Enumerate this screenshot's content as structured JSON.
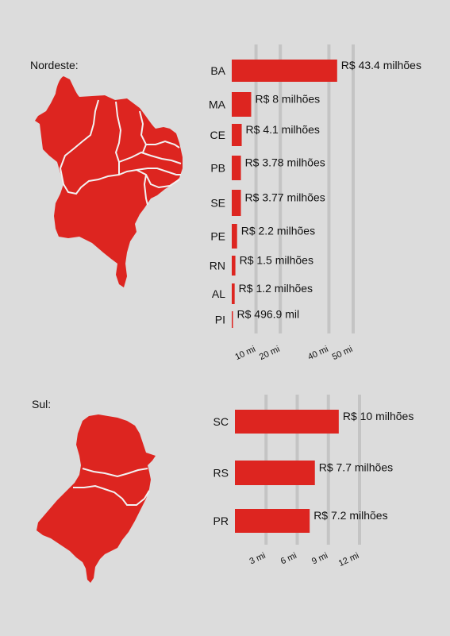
{
  "colors": {
    "background": "#dcdcdc",
    "bar": "#dd2520",
    "grid": "#c4c4c4",
    "map": "#dd2520",
    "map_border": "#f2f2f2"
  },
  "regions": [
    {
      "label": "Nordeste:",
      "map_icon": "nordeste-map-icon"
    },
    {
      "label": "Sul:",
      "map_icon": "sul-map-icon"
    }
  ],
  "chart_data": [
    {
      "type": "bar",
      "orientation": "horizontal",
      "region": "Nordeste",
      "categories": [
        "BA",
        "MA",
        "CE",
        "PB",
        "SE",
        "PE",
        "RN",
        "AL",
        "PI"
      ],
      "values": [
        43.4,
        8,
        4.1,
        3.78,
        3.77,
        2.2,
        1.5,
        1.2,
        0.4969
      ],
      "data_labels": [
        "R$ 43.4 milhões",
        "R$ 8 milhões",
        "R$ 4.1 milhões",
        "R$ 3.78 milhões",
        "R$ 3.77 milhões",
        "R$ 2.2 milhões",
        "R$ 1.5 milhões",
        "R$ 1.2 milhões",
        "R$ 496.9 mil"
      ],
      "x_ticks": [
        10,
        20,
        40,
        50
      ],
      "x_tick_labels": [
        "10 mi",
        "20 mi",
        "40 mi",
        "50 mi"
      ],
      "xlim": [
        0,
        50
      ],
      "grid": true
    },
    {
      "type": "bar",
      "orientation": "horizontal",
      "region": "Sul",
      "categories": [
        "SC",
        "RS",
        "PR"
      ],
      "values": [
        10,
        7.7,
        7.2
      ],
      "data_labels": [
        "R$ 10 milhões",
        "R$ 7.7 milhões",
        "R$ 7.2 milhões"
      ],
      "x_ticks": [
        3,
        6,
        9,
        12
      ],
      "x_tick_labels": [
        "3 mi",
        "6 mi",
        "9 mi",
        "12 mi"
      ],
      "xlim": [
        0,
        12
      ],
      "grid": true
    }
  ]
}
